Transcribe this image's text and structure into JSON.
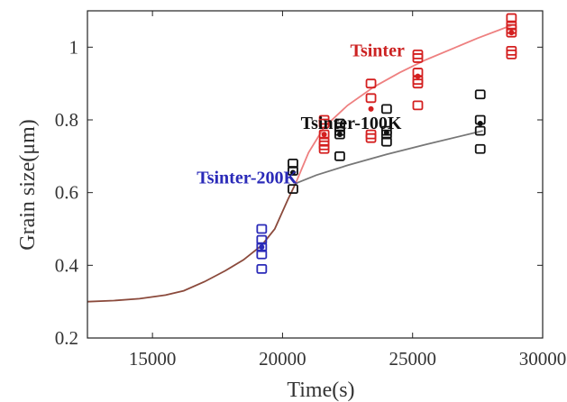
{
  "chart_data": {
    "type": "scatter",
    "xlabel": "Time(s)",
    "ylabel": "Grain size(μm)",
    "xlim": [
      12500,
      30000
    ],
    "ylim": [
      0.2,
      1.1
    ],
    "xticks": [
      15000,
      20000,
      25000,
      30000
    ],
    "xtick_labels": [
      "15000",
      "20000",
      "25000",
      "30000"
    ],
    "yticks": [
      0.2,
      0.4,
      0.6,
      0.8,
      1.0
    ],
    "ytick_labels": [
      "0.2",
      "0.4",
      "0.6",
      "0.8",
      "1"
    ],
    "grid": false,
    "lines": [
      {
        "color": "#8b4a3c",
        "points": [
          [
            12500,
            0.3
          ],
          [
            13500,
            0.303
          ],
          [
            14500,
            0.308
          ],
          [
            15500,
            0.318
          ],
          [
            16200,
            0.33
          ],
          [
            17000,
            0.355
          ],
          [
            17800,
            0.385
          ],
          [
            18500,
            0.415
          ],
          [
            19200,
            0.455
          ],
          [
            19700,
            0.5
          ],
          [
            20200,
            0.58
          ],
          [
            20500,
            0.625
          ]
        ]
      },
      {
        "color": "#777777",
        "points": [
          [
            20500,
            0.625
          ],
          [
            21300,
            0.648
          ],
          [
            22500,
            0.675
          ],
          [
            24000,
            0.705
          ],
          [
            25500,
            0.732
          ],
          [
            27700,
            0.77
          ]
        ]
      },
      {
        "color": "#ee8080",
        "points": [
          [
            20500,
            0.625
          ],
          [
            21000,
            0.71
          ],
          [
            21600,
            0.78
          ],
          [
            22500,
            0.84
          ],
          [
            23500,
            0.89
          ],
          [
            24500,
            0.93
          ],
          [
            25500,
            0.965
          ],
          [
            26500,
            0.995
          ],
          [
            27500,
            1.025
          ],
          [
            28800,
            1.06
          ]
        ]
      }
    ],
    "series": [
      {
        "name": "Tsinter",
        "color": "#d42020",
        "points": [
          [
            21600,
            0.8
          ],
          [
            21600,
            0.79
          ],
          [
            21600,
            0.76
          ],
          [
            21600,
            0.74
          ],
          [
            21600,
            0.73
          ],
          [
            21600,
            0.72
          ],
          [
            23400,
            0.9
          ],
          [
            23400,
            0.86
          ],
          [
            23400,
            0.76
          ],
          [
            23400,
            0.75
          ],
          [
            25200,
            0.98
          ],
          [
            25200,
            0.97
          ],
          [
            25200,
            0.93
          ],
          [
            25200,
            0.91
          ],
          [
            25200,
            0.9
          ],
          [
            25200,
            0.84
          ],
          [
            28800,
            1.08
          ],
          [
            28800,
            1.06
          ],
          [
            28800,
            1.05
          ],
          [
            28800,
            1.04
          ],
          [
            28800,
            0.99
          ],
          [
            28800,
            0.98
          ]
        ],
        "filled": [
          [
            21600,
            0.76
          ],
          [
            23400,
            0.83
          ],
          [
            25200,
            0.92
          ],
          [
            28800,
            1.04
          ]
        ]
      },
      {
        "name": "Tsinter-100K",
        "color": "#111111",
        "points": [
          [
            20400,
            0.68
          ],
          [
            20400,
            0.66
          ],
          [
            20400,
            0.61
          ],
          [
            22200,
            0.79
          ],
          [
            22200,
            0.78
          ],
          [
            22200,
            0.77
          ],
          [
            22200,
            0.76
          ],
          [
            22200,
            0.7
          ],
          [
            24000,
            0.83
          ],
          [
            24000,
            0.77
          ],
          [
            24000,
            0.76
          ],
          [
            24000,
            0.74
          ],
          [
            27600,
            0.87
          ],
          [
            27600,
            0.8
          ],
          [
            27600,
            0.77
          ],
          [
            27600,
            0.72
          ]
        ],
        "filled": [
          [
            20400,
            0.655
          ],
          [
            22200,
            0.76
          ],
          [
            24000,
            0.765
          ],
          [
            27600,
            0.79
          ]
        ]
      },
      {
        "name": "Tsinter-200K",
        "color": "#2a2ab8",
        "points": [
          [
            19200,
            0.5
          ],
          [
            19200,
            0.47
          ],
          [
            19200,
            0.45
          ],
          [
            19200,
            0.43
          ],
          [
            19200,
            0.39
          ]
        ],
        "filled": [
          [
            19200,
            0.45
          ]
        ]
      }
    ],
    "annotations": [
      {
        "text": "Tsinter",
        "color": "#cc2222",
        "x": 22600,
        "y": 0.975
      },
      {
        "text": "Tsinter-100K",
        "color": "#111111",
        "x": 20700,
        "y": 0.775
      },
      {
        "text": "Tsinter-200K",
        "color": "#2a2ab8",
        "x": 16700,
        "y": 0.625
      }
    ]
  }
}
